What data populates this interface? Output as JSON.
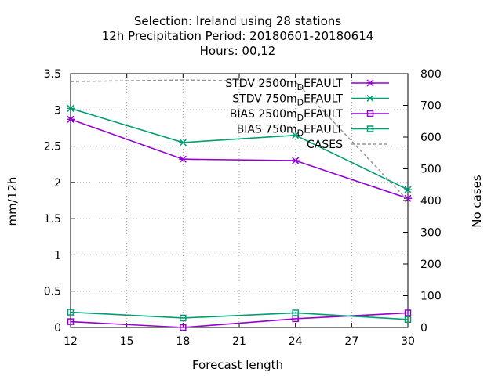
{
  "title": {
    "line1": "Selection: Ireland using    28 stations",
    "line2": "12h Precipitation    Period: 20180601-20180614",
    "line3": "Hours:  00,12"
  },
  "colors": {
    "stdv_2500": "#9400d3",
    "stdv_750": "#009e73",
    "bias_2500": "#9400d3",
    "bias_750": "#009e73",
    "cases": "#999999",
    "grid": "#a0a0a0"
  },
  "chart_data": {
    "type": "line",
    "xlabel": "Forecast length",
    "ylabel": "mm/12h",
    "y2label": "No cases",
    "xlim": [
      12,
      30
    ],
    "ylim": [
      0,
      3.5
    ],
    "y2lim": [
      0,
      800
    ],
    "xticks": [
      "12",
      "15",
      "18",
      "21",
      "24",
      "27",
      "30"
    ],
    "yticks": [
      "0",
      "0.5",
      "1",
      "1.5",
      "2",
      "2.5",
      "3",
      "3.5"
    ],
    "y2ticks": [
      "0",
      "100",
      "200",
      "300",
      "400",
      "500",
      "600",
      "700",
      "800"
    ],
    "grid": true,
    "legend_position": "top-right",
    "series": [
      {
        "name": "STDV 2500m",
        "suffix": "EFAULT",
        "sub": "D",
        "marker": "star",
        "color": "#9400d3",
        "axis": "y",
        "x": [
          12,
          18,
          24,
          30
        ],
        "values": [
          2.87,
          2.32,
          2.3,
          1.78
        ]
      },
      {
        "name": "STDV 750m",
        "suffix": "EFAULT",
        "sub": "D",
        "marker": "star",
        "color": "#009e73",
        "axis": "y",
        "x": [
          12,
          18,
          24,
          30
        ],
        "values": [
          3.02,
          2.55,
          2.65,
          1.9
        ]
      },
      {
        "name": "BIAS 2500m",
        "suffix": "EFAULT",
        "sub": "D",
        "marker": "square",
        "color": "#9400d3",
        "axis": "y",
        "x": [
          12,
          18,
          24,
          30
        ],
        "values": [
          0.08,
          0.0,
          0.12,
          0.2
        ]
      },
      {
        "name": "BIAS 750m",
        "suffix": "EFAULT",
        "sub": "D",
        "marker": "square",
        "color": "#009e73",
        "axis": "y",
        "x": [
          12,
          18,
          24,
          30
        ],
        "values": [
          0.21,
          0.13,
          0.2,
          0.11
        ]
      },
      {
        "name": "CASES",
        "suffix": "",
        "sub": "",
        "marker": "none",
        "color": "#999999",
        "axis": "y2",
        "dashed": true,
        "x": [
          12,
          18,
          24,
          30
        ],
        "values": [
          775,
          780,
          775,
          400
        ]
      }
    ]
  }
}
